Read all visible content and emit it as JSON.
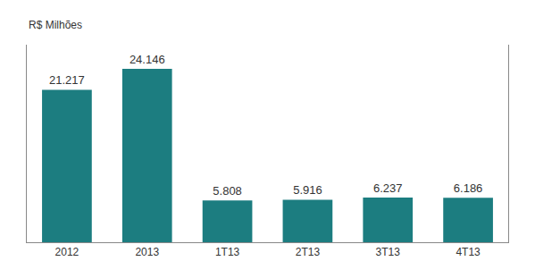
{
  "chart_data": {
    "type": "bar",
    "categories": [
      "2012",
      "2013",
      "1T13",
      "2T13",
      "3T13",
      "4T13"
    ],
    "values": [
      21.217,
      24.146,
      5.808,
      5.916,
      6.237,
      6.186
    ],
    "color": "#1c7d80",
    "ylabel": "R$ Milhões",
    "ylim": [
      0,
      27.5
    ],
    "data_labels": true,
    "tick_labels": "x",
    "grid": false
  }
}
